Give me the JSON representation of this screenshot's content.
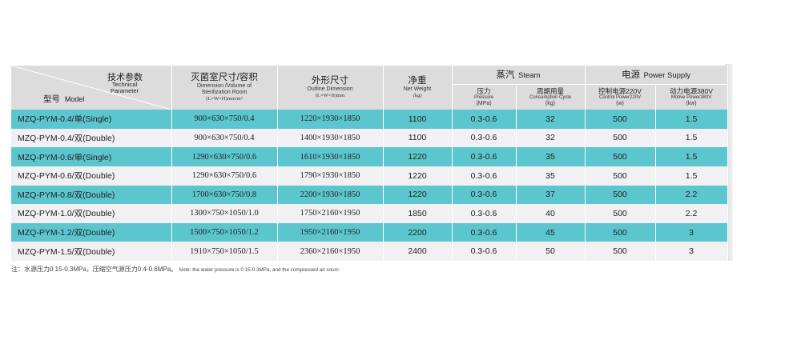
{
  "header": {
    "corner": {
      "tech_cn": "技术参数",
      "tech_en_1": "Technical",
      "tech_en_2": "Parameter",
      "model_cn": "型号",
      "model_en": "Model"
    },
    "chamber": {
      "cn": "灭菌室尺寸/容积",
      "en_1": "Dimension /Volume of",
      "en_2": "Sterilization Room",
      "unit": "(L×W×H)mm/m³"
    },
    "outline": {
      "cn": "外形尺寸",
      "en": "Outline Dimension",
      "unit": "(L×W×H)mm"
    },
    "weight": {
      "cn": "净重",
      "en": "Net Weight",
      "unit": "(kg)"
    },
    "steam": {
      "cn": "蒸汽",
      "en": "Steam",
      "pressure_cn": "压力",
      "pressure_en": "Pressure",
      "pressure_unit": "(MPa)",
      "consumption_cn": "周期用量",
      "consumption_en": "Consumption Cycle",
      "consumption_unit": "(kg)"
    },
    "power": {
      "cn": "电源",
      "en": "Power Supply",
      "control_cn": "控制电源220V",
      "control_en": "Control Power220V",
      "control_unit": "(w)",
      "motive_cn": "动力电源380V",
      "motive_en": "Motive Power380V",
      "motive_unit": "(kw)"
    }
  },
  "rows": [
    {
      "model": "MZQ-PYM-0.4/单(Single)",
      "chamber": "900×630×750/0.4",
      "outline": "1220×1930×1850",
      "weight": "1100",
      "pressure": "0.3-0.6",
      "consumption": "32",
      "control": "500",
      "motive": "1.5"
    },
    {
      "model": "MZQ-PYM-0.4/双(Double)",
      "chamber": "900×630×750/0.4",
      "outline": "1400×1930×1850",
      "weight": "1100",
      "pressure": "0.3-0.6",
      "consumption": "32",
      "control": "500",
      "motive": "1.5"
    },
    {
      "model": "MZQ-PYM-0.6/单(Single)",
      "chamber": "1290×630×750/0.6",
      "outline": "1610×1930×1850",
      "weight": "1220",
      "pressure": "0.3-0.6",
      "consumption": "35",
      "control": "500",
      "motive": "1.5"
    },
    {
      "model": "MZQ-PYM-0.6/双(Double)",
      "chamber": "1290×630×750/0.6",
      "outline": "1790×1930×1850",
      "weight": "1220",
      "pressure": "0.3-0.6",
      "consumption": "35",
      "control": "500",
      "motive": "1.5"
    },
    {
      "model": "MZQ-PYM-0.8/双(Double)",
      "chamber": "1700×630×750/0.8",
      "outline": "2200×1930×1850",
      "weight": "1220",
      "pressure": "0.3-0.6",
      "consumption": "37",
      "control": "500",
      "motive": "2.2"
    },
    {
      "model": "MZQ-PYM-1.0/双(Double)",
      "chamber": "1300×750×1050/1.0",
      "outline": "1750×2160×1950",
      "weight": "1850",
      "pressure": "0.3-0.6",
      "consumption": "40",
      "control": "500",
      "motive": "2.2"
    },
    {
      "model": "MZQ-PYM-1.2/双(Double)",
      "chamber": "1500×750×1050/1.2",
      "outline": "1950×2160×1950",
      "weight": "2200",
      "pressure": "0.3-0.6",
      "consumption": "45",
      "control": "500",
      "motive": "3"
    },
    {
      "model": "MZQ-PYM-1.5/双(Double)",
      "chamber": "1910×750×1050/1.5",
      "outline": "2360×2160×1950",
      "weight": "2400",
      "pressure": "0.3-0.6",
      "consumption": "50",
      "control": "500",
      "motive": "3"
    }
  ],
  "note": {
    "cn": "注：水源压力0.15-0.3MPa，压缩空气源压力0.4-0.6MPa。",
    "en": "Note: the water pressure is 0.15-0.3MPa, and the compressed air sourc"
  },
  "colors": {
    "teal_row": "#5cc6ce",
    "grey_row": "#f1f0f2",
    "header_bg": "#dcdcdc"
  }
}
